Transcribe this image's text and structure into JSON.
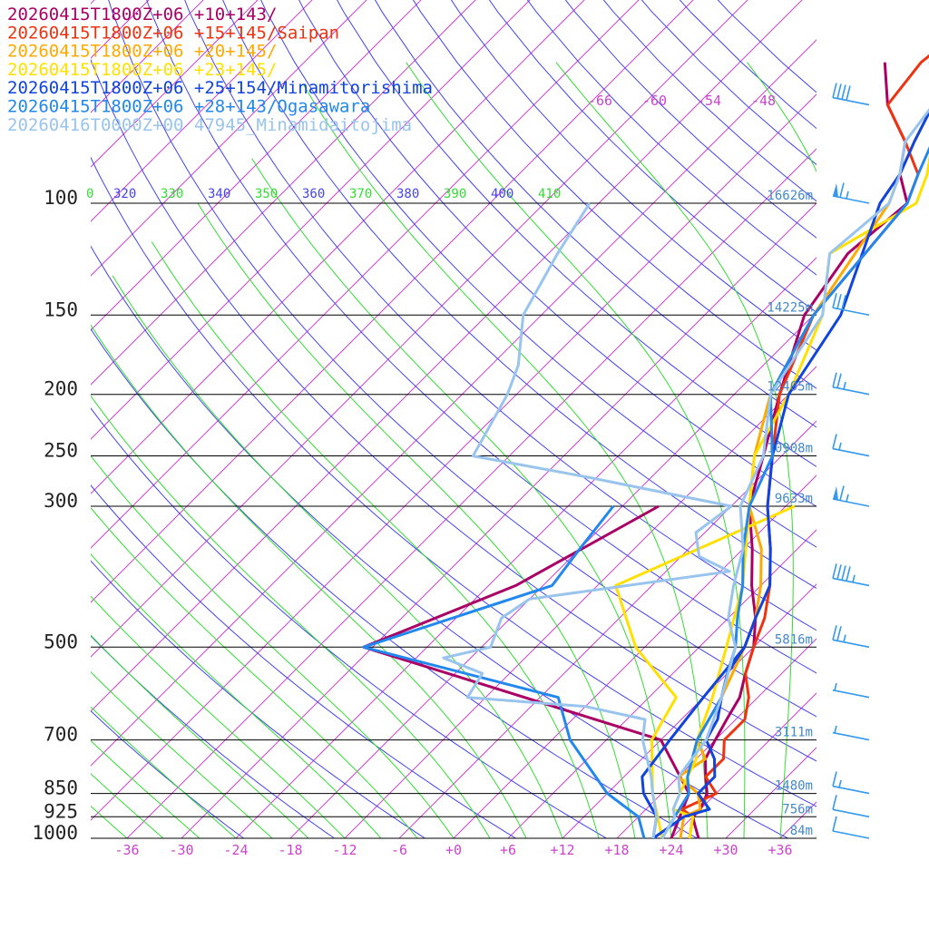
{
  "chart_data": {
    "type": "line",
    "subtype": "skew-T log-p sounding diagram",
    "title": "",
    "xlabel": "",
    "ylabel": "",
    "pressure_levels_hPa": [
      100,
      150,
      200,
      250,
      300,
      500,
      700,
      850,
      925,
      1000
    ],
    "pressure_labels": [
      "100",
      "150",
      "200",
      "250",
      "300",
      "500",
      "700",
      "850",
      "925",
      "1000"
    ],
    "height_labels": [
      {
        "p": 100,
        "label": "16626m"
      },
      {
        "p": 150,
        "label": "14225m"
      },
      {
        "p": 200,
        "label": "12405m"
      },
      {
        "p": 250,
        "label": "10908m"
      },
      {
        "p": 300,
        "label": "9633m"
      },
      {
        "p": 500,
        "label": "5816m"
      },
      {
        "p": 700,
        "label": "3111m"
      },
      {
        "p": 850,
        "label": "1480m"
      },
      {
        "p": 925,
        "label": "756m"
      },
      {
        "p": 1000,
        "label": "84m"
      }
    ],
    "temperature_ticks": [
      {
        "t": -36,
        "label": "-36"
      },
      {
        "t": -30,
        "label": "-30"
      },
      {
        "t": -24,
        "label": "-24"
      },
      {
        "t": -18,
        "label": "-18"
      },
      {
        "t": -12,
        "label": "-12"
      },
      {
        "t": -6,
        "label": "-6"
      },
      {
        "t": 0,
        "label": "+0"
      },
      {
        "t": 6,
        "label": "+6"
      },
      {
        "t": 12,
        "label": "+12"
      },
      {
        "t": 18,
        "label": "+18"
      },
      {
        "t": 24,
        "label": "+24"
      },
      {
        "t": 30,
        "label": "+30"
      },
      {
        "t": 36,
        "label": "+36"
      }
    ],
    "upper_isotherm_labels": [
      "-66",
      "-60",
      "-54",
      "-48"
    ],
    "theta_labels": [
      {
        "label": "0",
        "color": "#33dd33"
      },
      {
        "label": "320",
        "color": "#4444ee"
      },
      {
        "label": "330",
        "color": "#33dd33"
      },
      {
        "label": "340",
        "color": "#4444ee"
      },
      {
        "label": "350",
        "color": "#33dd33"
      },
      {
        "label": "360",
        "color": "#4444ee"
      },
      {
        "label": "370",
        "color": "#33dd33"
      },
      {
        "label": "380",
        "color": "#4444ee"
      },
      {
        "label": "390",
        "color": "#33dd33"
      },
      {
        "label": "400",
        "color": "#4444ee"
      },
      {
        "label": "410",
        "color": "#33dd33"
      }
    ],
    "axis": {
      "t_min": -40,
      "t_max": 40,
      "p_top": 100,
      "p_bottom": 1000,
      "skew": "45deg",
      "log_pressure": true
    },
    "series": [
      {
        "name": "20260415T1800Z+06 +10+143/",
        "color": "#aa0066",
        "temperature": [
          [
            60,
            -38
          ],
          [
            70,
            -33
          ],
          [
            80,
            -27
          ],
          [
            90,
            -24
          ],
          [
            100,
            -20
          ],
          [
            120,
            -21
          ],
          [
            150,
            -19
          ],
          [
            200,
            -13
          ],
          [
            250,
            -8
          ],
          [
            300,
            -4
          ],
          [
            350,
            1
          ],
          [
            400,
            5
          ],
          [
            450,
            9
          ],
          [
            500,
            12
          ],
          [
            550,
            14
          ],
          [
            600,
            16
          ],
          [
            650,
            17
          ],
          [
            700,
            18
          ],
          [
            750,
            19
          ],
          [
            800,
            21
          ],
          [
            850,
            23
          ],
          [
            900,
            24
          ],
          [
            925,
            24
          ],
          [
            950,
            25
          ],
          [
            1000,
            27
          ]
        ],
        "dewpoint": [
          [
            300,
            -14
          ],
          [
            400,
            -21
          ],
          [
            500,
            -31
          ],
          [
            700,
            12
          ],
          [
            850,
            21
          ],
          [
            1000,
            24
          ]
        ]
      },
      {
        "name": "20260415T1800Z+06 +15+145/Saipan",
        "color": "#ee3311",
        "temperature": [
          [
            40,
            -31
          ],
          [
            60,
            -34
          ],
          [
            70,
            -33
          ],
          [
            80,
            -27
          ],
          [
            90,
            -22
          ],
          [
            100,
            -20
          ],
          [
            150,
            -18
          ],
          [
            200,
            -13
          ],
          [
            250,
            -7
          ],
          [
            300,
            -2
          ],
          [
            350,
            3
          ],
          [
            400,
            7
          ],
          [
            450,
            10
          ],
          [
            500,
            12
          ],
          [
            550,
            14
          ],
          [
            600,
            17
          ],
          [
            650,
            19
          ],
          [
            700,
            19
          ],
          [
            750,
            21
          ],
          [
            800,
            21
          ],
          [
            850,
            24
          ],
          [
            900,
            22
          ],
          [
            925,
            24
          ],
          [
            1000,
            26
          ]
        ]
      },
      {
        "name": "20260415T1800Z+06 +20+145/",
        "color": "#ffaa00",
        "temperature": [
          [
            40,
            -32
          ],
          [
            60,
            -32
          ],
          [
            70,
            -28
          ],
          [
            80,
            -26
          ],
          [
            90,
            -24
          ],
          [
            100,
            -22
          ],
          [
            150,
            -18
          ],
          [
            200,
            -14
          ],
          [
            250,
            -9
          ],
          [
            300,
            -4
          ],
          [
            350,
            2
          ],
          [
            400,
            6
          ],
          [
            450,
            9
          ],
          [
            500,
            11
          ],
          [
            600,
            14
          ],
          [
            700,
            16
          ],
          [
            750,
            19
          ],
          [
            800,
            18
          ],
          [
            850,
            22
          ],
          [
            900,
            24
          ],
          [
            925,
            23
          ],
          [
            1000,
            25
          ]
        ]
      },
      {
        "name": "20260415T1800Z+06 +23+145/",
        "color": "#ffe000",
        "temperature": [
          [
            50,
            -30
          ],
          [
            60,
            -32
          ],
          [
            70,
            -27
          ],
          [
            80,
            -24
          ],
          [
            90,
            -21
          ],
          [
            100,
            -19
          ],
          [
            120,
            -23
          ],
          [
            150,
            -17
          ],
          [
            200,
            -12
          ],
          [
            250,
            -9
          ],
          [
            300,
            -4
          ],
          [
            400,
            4
          ],
          [
            500,
            9
          ],
          [
            600,
            13
          ],
          [
            700,
            16
          ],
          [
            750,
            18
          ],
          [
            800,
            19
          ],
          [
            850,
            20
          ],
          [
            900,
            21
          ],
          [
            925,
            24
          ],
          [
            1000,
            26
          ]
        ],
        "dewpoint": [
          [
            300,
            1
          ],
          [
            400,
            -10
          ],
          [
            500,
            -1
          ],
          [
            600,
            9
          ],
          [
            700,
            11
          ],
          [
            850,
            17
          ],
          [
            1000,
            23
          ]
        ]
      },
      {
        "name": "20260415T1800Z+06 +25+154/Minamitorishima",
        "color": "#1144dd",
        "temperature": [
          [
            40,
            -31
          ],
          [
            60,
            -33
          ],
          [
            70,
            -28
          ],
          [
            80,
            -26
          ],
          [
            90,
            -24
          ],
          [
            100,
            -23
          ],
          [
            150,
            -15
          ],
          [
            200,
            -12
          ],
          [
            250,
            -7
          ],
          [
            300,
            -2
          ],
          [
            350,
            3
          ],
          [
            400,
            7
          ],
          [
            450,
            9
          ],
          [
            500,
            11
          ],
          [
            550,
            12
          ],
          [
            600,
            14
          ],
          [
            650,
            16
          ],
          [
            700,
            17
          ],
          [
            750,
            20
          ],
          [
            800,
            22
          ],
          [
            850,
            22
          ],
          [
            900,
            25
          ],
          [
            925,
            23
          ],
          [
            1000,
            22
          ]
        ],
        "dewpoint": [
          [
            500,
            11
          ],
          [
            600,
            12
          ],
          [
            700,
            13
          ],
          [
            800,
            14
          ],
          [
            850,
            16
          ],
          [
            925,
            20
          ],
          [
            1000,
            22
          ]
        ]
      },
      {
        "name": "20260415T1800Z+06 +28+143/Ogasawara",
        "color": "#2288ee",
        "temperature": [
          [
            40,
            -29
          ],
          [
            60,
            -27
          ],
          [
            70,
            -25
          ],
          [
            80,
            -24
          ],
          [
            90,
            -22
          ],
          [
            100,
            -20
          ],
          [
            150,
            -18
          ],
          [
            200,
            -14
          ],
          [
            250,
            -7
          ],
          [
            300,
            -4
          ],
          [
            350,
            0
          ],
          [
            400,
            4
          ],
          [
            450,
            7
          ],
          [
            500,
            10
          ],
          [
            550,
            12
          ],
          [
            600,
            14
          ],
          [
            700,
            16
          ],
          [
            800,
            19
          ],
          [
            850,
            21
          ],
          [
            925,
            22
          ],
          [
            1000,
            23
          ]
        ],
        "dewpoint": [
          [
            300,
            -19
          ],
          [
            350,
            -18
          ],
          [
            400,
            -17
          ],
          [
            500,
            -31
          ],
          [
            600,
            -4
          ],
          [
            700,
            2
          ],
          [
            850,
            12
          ],
          [
            925,
            18
          ],
          [
            1000,
            21
          ]
        ]
      },
      {
        "name": "20260416T0000Z+00 47945_Minamidaitojima",
        "color": "#99c4ee",
        "temperature": [
          [
            50,
            -37
          ],
          [
            70,
            -28
          ],
          [
            80,
            -27
          ],
          [
            90,
            -24
          ],
          [
            100,
            -22
          ],
          [
            120,
            -23
          ],
          [
            150,
            -17
          ],
          [
            200,
            -14
          ],
          [
            250,
            -8
          ],
          [
            300,
            -5
          ],
          [
            350,
            0
          ],
          [
            400,
            3
          ],
          [
            450,
            6
          ],
          [
            500,
            10
          ],
          [
            600,
            14
          ],
          [
            700,
            17
          ],
          [
            800,
            18
          ],
          [
            850,
            20
          ],
          [
            900,
            21
          ],
          [
            925,
            22
          ],
          [
            1000,
            23
          ]
        ],
        "dewpoint": [
          [
            100,
            -55
          ],
          [
            120,
            -53
          ],
          [
            150,
            -50
          ],
          [
            180,
            -45
          ],
          [
            200,
            -43
          ],
          [
            250,
            -40
          ],
          [
            270,
            -25
          ],
          [
            300,
            -6
          ],
          [
            330,
            -7
          ],
          [
            360,
            -4
          ],
          [
            380,
            1
          ],
          [
            420,
            -18
          ],
          [
            450,
            -19
          ],
          [
            500,
            -17
          ],
          [
            520,
            -21
          ],
          [
            550,
            -15
          ],
          [
            600,
            -14
          ],
          [
            620,
            0
          ],
          [
            650,
            8
          ],
          [
            700,
            10
          ],
          [
            800,
            15
          ],
          [
            850,
            17
          ],
          [
            925,
            20
          ],
          [
            1000,
            22
          ]
        ]
      }
    ]
  },
  "legend": [
    {
      "text": "20260415T1800Z+06 +10+143/",
      "color": "#aa0066"
    },
    {
      "text": "20260415T1800Z+06 +15+145/Saipan",
      "color": "#ee3311"
    },
    {
      "text": "20260415T1800Z+06 +20+145/",
      "color": "#ffaa00"
    },
    {
      "text": "20260415T1800Z+06 +23+145/",
      "color": "#ffe000"
    },
    {
      "text": "20260415T1800Z+06 +25+154/Minamitorishima",
      "color": "#1144dd"
    },
    {
      "text": "20260415T1800Z+06 +28+143/Ogasawara",
      "color": "#2288ee"
    },
    {
      "text": "20260416T0000Z+00 47945_Minamidaitojima",
      "color": "#99c4ee"
    }
  ],
  "colors": {
    "isotherm": "#cc44cc",
    "dry_adiabat": "#4444ee",
    "moist_adiabat": "#33dd33",
    "isobar": "#000000",
    "wind_barb": "#3399ee"
  },
  "wind_barbs": [
    {
      "p": 40,
      "speed_kt": 20
    },
    {
      "p": 70,
      "speed_kt": 40
    },
    {
      "p": 100,
      "speed_kt": 65
    },
    {
      "p": 150,
      "speed_kt": 30
    },
    {
      "p": 200,
      "speed_kt": 25
    },
    {
      "p": 250,
      "speed_kt": 15
    },
    {
      "p": 300,
      "speed_kt": 65
    },
    {
      "p": 400,
      "speed_kt": 45
    },
    {
      "p": 500,
      "speed_kt": 25
    },
    {
      "p": 600,
      "speed_kt": 5
    },
    {
      "p": 700,
      "speed_kt": 5
    },
    {
      "p": 850,
      "speed_kt": 15
    },
    {
      "p": 925,
      "speed_kt": 10
    },
    {
      "p": 1000,
      "speed_kt": 10
    }
  ]
}
